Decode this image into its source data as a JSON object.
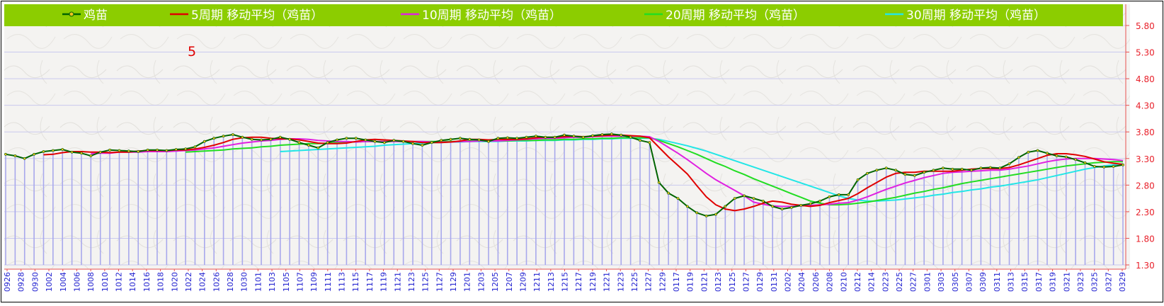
{
  "chart_data": {
    "type": "line",
    "annotation": "5",
    "y_ticks": [
      "5.80",
      "5.30",
      "4.80",
      "4.30",
      "3.80",
      "3.30",
      "2.80",
      "2.30",
      "1.80",
      "1.30"
    ],
    "ylim": [
      1.3,
      5.8
    ],
    "x_tick_labels": [
      "0926",
      "0928",
      "0930",
      "1002",
      "1004",
      "1006",
      "1008",
      "1010",
      "1012",
      "1014",
      "1016",
      "1018",
      "1020",
      "1022",
      "1024",
      "1026",
      "1028",
      "1030",
      "1101",
      "1103",
      "1105",
      "1107",
      "1109",
      "1111",
      "1113",
      "1115",
      "1117",
      "1119",
      "1121",
      "1123",
      "1125",
      "1127",
      "1129",
      "1201",
      "1203",
      "1205",
      "1207",
      "1209",
      "1211",
      "1213",
      "1215",
      "1217",
      "1219",
      "1221",
      "1223",
      "1225",
      "1227",
      "1229",
      "0117",
      "0119",
      "0121",
      "0123",
      "0125",
      "0127",
      "0129",
      "0131",
      "0202",
      "0204",
      "0206",
      "0208",
      "0210",
      "0212",
      "0214",
      "0223",
      "0225",
      "0227",
      "0301",
      "0303",
      "0305",
      "0307",
      "0309",
      "0311",
      "0313",
      "0315",
      "0317",
      "0319",
      "0321",
      "0323",
      "0325",
      "0327",
      "0329"
    ],
    "series": [
      {
        "name": "鸡苗",
        "color": "#006400",
        "marker": true,
        "values": [
          3.38,
          3.35,
          3.3,
          3.38,
          3.43,
          3.45,
          3.47,
          3.42,
          3.4,
          3.35,
          3.42,
          3.46,
          3.45,
          3.44,
          3.43,
          3.46,
          3.46,
          3.45,
          3.47,
          3.48,
          3.52,
          3.62,
          3.68,
          3.72,
          3.75,
          3.7,
          3.66,
          3.65,
          3.66,
          3.7,
          3.66,
          3.6,
          3.55,
          3.5,
          3.6,
          3.65,
          3.68,
          3.68,
          3.65,
          3.62,
          3.6,
          3.64,
          3.62,
          3.58,
          3.55,
          3.6,
          3.64,
          3.66,
          3.68,
          3.66,
          3.65,
          3.62,
          3.68,
          3.69,
          3.68,
          3.7,
          3.72,
          3.7,
          3.7,
          3.74,
          3.72,
          3.7,
          3.73,
          3.75,
          3.76,
          3.74,
          3.7,
          3.64,
          3.6,
          2.85,
          2.65,
          2.55,
          2.4,
          2.28,
          2.22,
          2.25,
          2.4,
          2.55,
          2.6,
          2.55,
          2.5,
          2.4,
          2.35,
          2.38,
          2.42,
          2.45,
          2.5,
          2.58,
          2.62,
          2.62,
          2.9,
          3.02,
          3.08,
          3.12,
          3.08,
          3.0,
          2.98,
          3.04,
          3.08,
          3.12,
          3.1,
          3.1,
          3.08,
          3.12,
          3.13,
          3.12,
          3.2,
          3.32,
          3.42,
          3.45,
          3.4,
          3.35,
          3.33,
          3.28,
          3.22,
          3.15,
          3.14,
          3.15,
          3.18
        ]
      },
      {
        "name": "5周期 移动平均（鸡苗）",
        "color": "#e00000",
        "marker": false,
        "values": [
          null,
          null,
          null,
          null,
          3.37,
          3.38,
          3.41,
          3.43,
          3.43,
          3.42,
          3.42,
          3.41,
          3.42,
          3.42,
          3.44,
          3.45,
          3.45,
          3.45,
          3.46,
          3.46,
          3.48,
          3.51,
          3.55,
          3.6,
          3.66,
          3.69,
          3.7,
          3.7,
          3.68,
          3.67,
          3.67,
          3.65,
          3.62,
          3.59,
          3.58,
          3.58,
          3.59,
          3.62,
          3.65,
          3.66,
          3.65,
          3.64,
          3.63,
          3.62,
          3.6,
          3.6,
          3.6,
          3.61,
          3.63,
          3.66,
          3.66,
          3.65,
          3.66,
          3.66,
          3.66,
          3.67,
          3.69,
          3.7,
          3.7,
          3.71,
          3.72,
          3.71,
          3.72,
          3.73,
          3.74,
          3.74,
          3.73,
          3.72,
          3.69,
          3.51,
          3.33,
          3.17,
          3.01,
          2.79,
          2.58,
          2.43,
          2.35,
          2.32,
          2.35,
          2.4,
          2.46,
          2.5,
          2.48,
          2.44,
          2.42,
          2.4,
          2.42,
          2.47,
          2.51,
          2.55,
          2.64,
          2.75,
          2.85,
          2.95,
          3.02,
          3.04,
          3.04,
          3.06,
          3.06,
          3.06,
          3.06,
          3.08,
          3.1,
          3.11,
          3.11,
          3.11,
          3.13,
          3.18,
          3.24,
          3.3,
          3.36,
          3.39,
          3.39,
          3.37,
          3.34,
          3.29,
          3.24,
          3.21,
          3.19
        ]
      },
      {
        "name": "10周期 移动平均（鸡苗）",
        "color": "#e020e0",
        "marker": false,
        "values": [
          null,
          null,
          null,
          null,
          null,
          null,
          null,
          null,
          null,
          3.39,
          3.4,
          3.4,
          3.42,
          3.42,
          3.42,
          3.43,
          3.43,
          3.43,
          3.44,
          3.45,
          3.46,
          3.48,
          3.5,
          3.53,
          3.56,
          3.59,
          3.61,
          3.63,
          3.64,
          3.66,
          3.67,
          3.67,
          3.66,
          3.64,
          3.63,
          3.62,
          3.62,
          3.61,
          3.62,
          3.62,
          3.62,
          3.62,
          3.62,
          3.62,
          3.62,
          3.61,
          3.61,
          3.61,
          3.62,
          3.62,
          3.63,
          3.63,
          3.63,
          3.64,
          3.65,
          3.66,
          3.67,
          3.68,
          3.68,
          3.69,
          3.7,
          3.7,
          3.71,
          3.72,
          3.72,
          3.72,
          3.72,
          3.72,
          3.71,
          3.62,
          3.51,
          3.4,
          3.28,
          3.15,
          3.02,
          2.9,
          2.8,
          2.7,
          2.6,
          2.48,
          2.44,
          2.41,
          2.4,
          2.4,
          2.41,
          2.42,
          2.43,
          2.44,
          2.46,
          2.47,
          2.52,
          2.58,
          2.65,
          2.72,
          2.78,
          2.84,
          2.89,
          2.94,
          2.98,
          3.02,
          3.04,
          3.05,
          3.06,
          3.07,
          3.08,
          3.08,
          3.1,
          3.13,
          3.16,
          3.2,
          3.24,
          3.27,
          3.29,
          3.3,
          3.3,
          3.3,
          3.29,
          3.28,
          3.26
        ]
      },
      {
        "name": "20周期 移动平均（鸡苗）",
        "color": "#22dd22",
        "marker": false,
        "values": [
          null,
          null,
          null,
          null,
          null,
          null,
          null,
          null,
          null,
          null,
          null,
          null,
          null,
          null,
          null,
          null,
          null,
          null,
          null,
          3.42,
          3.43,
          3.44,
          3.45,
          3.46,
          3.48,
          3.49,
          3.5,
          3.52,
          3.53,
          3.55,
          3.56,
          3.57,
          3.58,
          3.58,
          3.59,
          3.6,
          3.61,
          3.61,
          3.62,
          3.62,
          3.62,
          3.62,
          3.62,
          3.62,
          3.62,
          3.62,
          3.62,
          3.62,
          3.62,
          3.63,
          3.63,
          3.63,
          3.63,
          3.63,
          3.64,
          3.64,
          3.64,
          3.65,
          3.65,
          3.66,
          3.66,
          3.67,
          3.67,
          3.68,
          3.68,
          3.69,
          3.69,
          3.69,
          3.69,
          3.64,
          3.58,
          3.52,
          3.45,
          3.38,
          3.3,
          3.22,
          3.15,
          3.07,
          3.0,
          2.92,
          2.85,
          2.78,
          2.71,
          2.64,
          2.57,
          2.5,
          2.46,
          2.43,
          2.43,
          2.44,
          2.46,
          2.48,
          2.51,
          2.54,
          2.57,
          2.61,
          2.65,
          2.68,
          2.72,
          2.75,
          2.79,
          2.83,
          2.86,
          2.89,
          2.92,
          2.95,
          2.98,
          3.01,
          3.04,
          3.07,
          3.1,
          3.13,
          3.16,
          3.18,
          3.2,
          3.22,
          3.23,
          3.24,
          3.24
        ]
      },
      {
        "name": "30周期 移动平均（鸡苗）",
        "color": "#22e6e6",
        "marker": false,
        "values": [
          null,
          null,
          null,
          null,
          null,
          null,
          null,
          null,
          null,
          null,
          null,
          null,
          null,
          null,
          null,
          null,
          null,
          null,
          null,
          null,
          null,
          null,
          null,
          null,
          null,
          null,
          null,
          null,
          null,
          3.43,
          3.44,
          3.45,
          3.46,
          3.47,
          3.48,
          3.49,
          3.5,
          3.51,
          3.52,
          3.53,
          3.55,
          3.56,
          3.57,
          3.58,
          3.59,
          3.6,
          3.6,
          3.61,
          3.61,
          3.62,
          3.62,
          3.62,
          3.62,
          3.63,
          3.63,
          3.63,
          3.64,
          3.64,
          3.64,
          3.65,
          3.65,
          3.66,
          3.66,
          3.67,
          3.67,
          3.68,
          3.68,
          3.68,
          3.68,
          3.66,
          3.62,
          3.58,
          3.54,
          3.49,
          3.44,
          3.38,
          3.32,
          3.26,
          3.2,
          3.14,
          3.08,
          3.02,
          2.96,
          2.9,
          2.84,
          2.78,
          2.72,
          2.66,
          2.6,
          2.55,
          2.52,
          2.5,
          2.5,
          2.51,
          2.52,
          2.54,
          2.56,
          2.58,
          2.61,
          2.63,
          2.66,
          2.68,
          2.71,
          2.73,
          2.76,
          2.78,
          2.81,
          2.84,
          2.87,
          2.9,
          2.94,
          2.98,
          3.02,
          3.06,
          3.1,
          3.13,
          3.16,
          3.18,
          3.2
        ]
      }
    ]
  }
}
